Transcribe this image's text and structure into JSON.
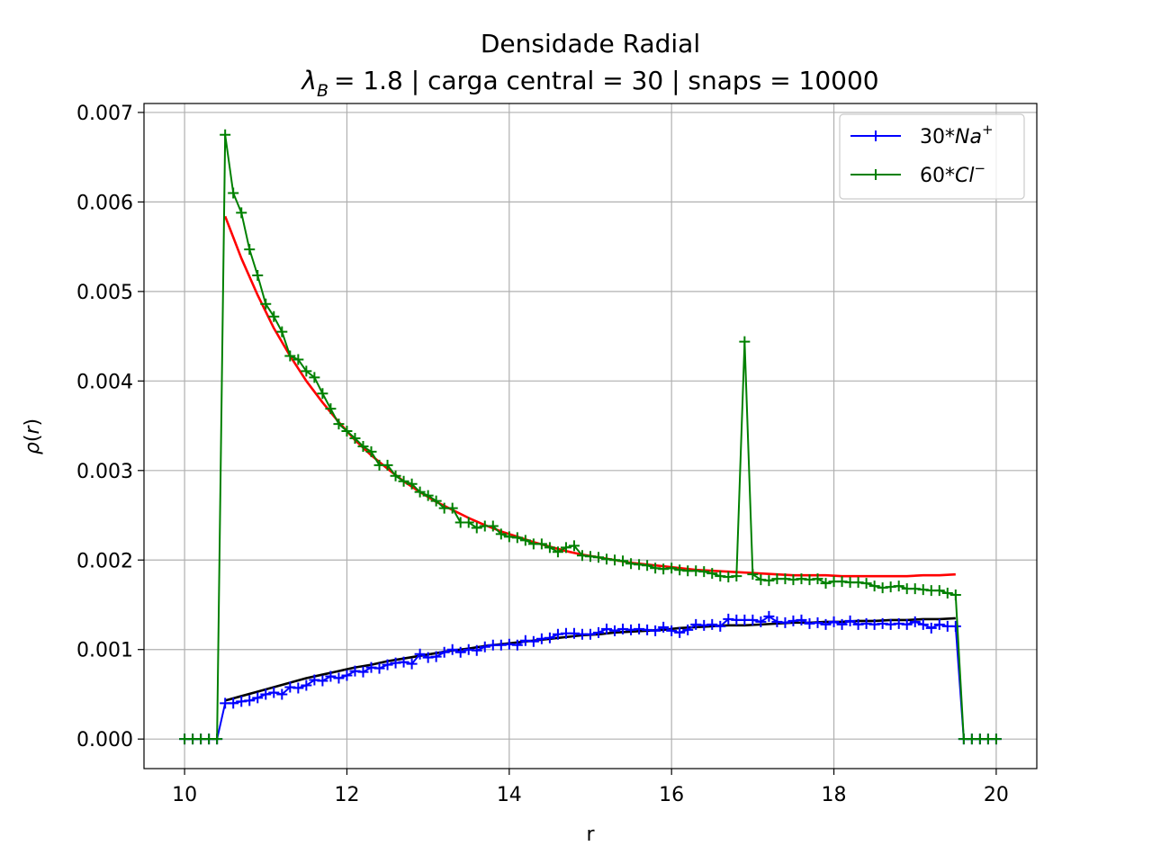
{
  "chart_data": {
    "type": "line",
    "title": "Densidade Radial",
    "subtitle_parts": {
      "lambda": "λ",
      "lambda_sub": "B",
      "rest": "= 1.8 | carga central = 30 | snaps = 10000"
    },
    "xlabel": "r",
    "ylabel_parts": {
      "rho": "ρ",
      "open": "(",
      "r": "r",
      "close": ")"
    },
    "xlim": [
      9.5,
      20.5
    ],
    "ylim": [
      -0.00033,
      0.0071
    ],
    "xticks": [
      10,
      12,
      14,
      16,
      18,
      20
    ],
    "xtick_labels": [
      "10",
      "12",
      "14",
      "16",
      "18",
      "20"
    ],
    "yticks": [
      0.0,
      0.001,
      0.002,
      0.003,
      0.004,
      0.005,
      0.006,
      0.007
    ],
    "ytick_labels": [
      "0.000",
      "0.001",
      "0.002",
      "0.003",
      "0.004",
      "0.005",
      "0.006",
      "0.007"
    ],
    "grid": true,
    "legend_position": "top-right",
    "series": [
      {
        "name": "30*Na+",
        "label_text": "30*",
        "label_italic": "Na",
        "label_sup": "+",
        "color": "#0000ff",
        "marker": "plus",
        "x": [
          10.0,
          10.1,
          10.2,
          10.3,
          10.4,
          10.5,
          10.6,
          10.7,
          10.8,
          10.9,
          11.0,
          11.1,
          11.2,
          11.3,
          11.4,
          11.5,
          11.6,
          11.7,
          11.8,
          11.9,
          12.0,
          12.1,
          12.2,
          12.3,
          12.4,
          12.5,
          12.6,
          12.7,
          12.8,
          12.9,
          13.0,
          13.1,
          13.2,
          13.3,
          13.4,
          13.5,
          13.6,
          13.7,
          13.8,
          13.9,
          14.0,
          14.1,
          14.2,
          14.3,
          14.4,
          14.5,
          14.6,
          14.7,
          14.8,
          14.9,
          15.0,
          15.1,
          15.2,
          15.3,
          15.4,
          15.5,
          15.6,
          15.7,
          15.8,
          15.9,
          16.0,
          16.1,
          16.2,
          16.3,
          16.4,
          16.5,
          16.6,
          16.7,
          16.8,
          16.9,
          17.0,
          17.1,
          17.2,
          17.3,
          17.4,
          17.5,
          17.6,
          17.7,
          17.8,
          17.9,
          18.0,
          18.1,
          18.2,
          18.3,
          18.4,
          18.5,
          18.6,
          18.7,
          18.8,
          18.9,
          19.0,
          19.1,
          19.2,
          19.3,
          19.4,
          19.5,
          19.6,
          19.7,
          19.8,
          19.9,
          20.0
        ],
        "values": [
          0.0,
          0.0,
          0.0,
          0.0,
          0.0,
          0.0004,
          0.0004,
          0.00042,
          0.00043,
          0.00046,
          0.0005,
          0.00052,
          0.0005,
          0.00058,
          0.00057,
          0.0006,
          0.00066,
          0.00065,
          0.0007,
          0.00068,
          0.00071,
          0.00076,
          0.00075,
          0.0008,
          0.00079,
          0.00083,
          0.00085,
          0.00086,
          0.00084,
          0.00095,
          0.00091,
          0.00092,
          0.00097,
          0.001,
          0.00097,
          0.001,
          0.00099,
          0.00103,
          0.00105,
          0.00105,
          0.00106,
          0.00105,
          0.0011,
          0.00109,
          0.00112,
          0.00113,
          0.00117,
          0.00118,
          0.00118,
          0.00117,
          0.00117,
          0.00119,
          0.00123,
          0.00121,
          0.00123,
          0.00122,
          0.00123,
          0.00122,
          0.00121,
          0.00125,
          0.00121,
          0.00119,
          0.00122,
          0.00128,
          0.00127,
          0.00128,
          0.00126,
          0.00134,
          0.00133,
          0.00133,
          0.00133,
          0.00131,
          0.00137,
          0.00131,
          0.0013,
          0.00132,
          0.00133,
          0.00129,
          0.0013,
          0.00128,
          0.00131,
          0.00128,
          0.00132,
          0.00128,
          0.00129,
          0.00128,
          0.00129,
          0.00128,
          0.00129,
          0.00128,
          0.00131,
          0.00128,
          0.00124,
          0.00128,
          0.00126,
          0.00126,
          0.0,
          0.0,
          0.0,
          0.0,
          0.0
        ]
      },
      {
        "name": "60*Cl-",
        "label_text": "60*",
        "label_italic": "Cl",
        "label_sup": "−",
        "color": "#008000",
        "marker": "plus",
        "x": [
          10.0,
          10.1,
          10.2,
          10.3,
          10.4,
          10.5,
          10.6,
          10.7,
          10.8,
          10.9,
          11.0,
          11.1,
          11.2,
          11.3,
          11.4,
          11.5,
          11.6,
          11.7,
          11.8,
          11.9,
          12.0,
          12.1,
          12.2,
          12.3,
          12.4,
          12.5,
          12.6,
          12.7,
          12.8,
          12.9,
          13.0,
          13.1,
          13.2,
          13.3,
          13.4,
          13.5,
          13.6,
          13.7,
          13.8,
          13.9,
          14.0,
          14.1,
          14.2,
          14.3,
          14.4,
          14.5,
          14.6,
          14.7,
          14.8,
          14.9,
          15.0,
          15.1,
          15.2,
          15.3,
          15.4,
          15.5,
          15.6,
          15.7,
          15.8,
          15.9,
          16.0,
          16.1,
          16.2,
          16.3,
          16.4,
          16.5,
          16.6,
          16.7,
          16.8,
          16.9,
          17.0,
          17.1,
          17.2,
          17.3,
          17.4,
          17.5,
          17.6,
          17.7,
          17.8,
          17.9,
          18.0,
          18.1,
          18.2,
          18.3,
          18.4,
          18.5,
          18.6,
          18.7,
          18.8,
          18.9,
          19.0,
          19.1,
          19.2,
          19.3,
          19.4,
          19.5,
          19.6,
          19.7,
          19.8,
          19.9,
          20.0
        ],
        "values": [
          0.0,
          0.0,
          0.0,
          0.0,
          0.0,
          0.00675,
          0.0061,
          0.00588,
          0.00547,
          0.00518,
          0.00486,
          0.00472,
          0.00455,
          0.00428,
          0.00424,
          0.00411,
          0.00404,
          0.00386,
          0.00369,
          0.00352,
          0.00344,
          0.00336,
          0.00327,
          0.00321,
          0.00306,
          0.00306,
          0.00294,
          0.00288,
          0.00285,
          0.00276,
          0.00272,
          0.00266,
          0.00258,
          0.00258,
          0.00242,
          0.00242,
          0.00236,
          0.00238,
          0.00238,
          0.00229,
          0.00226,
          0.00225,
          0.00222,
          0.00218,
          0.00218,
          0.00214,
          0.00209,
          0.00214,
          0.00216,
          0.00205,
          0.00204,
          0.00203,
          0.00201,
          0.002,
          0.00199,
          0.00196,
          0.00195,
          0.00194,
          0.00191,
          0.0019,
          0.00191,
          0.00189,
          0.00188,
          0.00188,
          0.00187,
          0.00185,
          0.00182,
          0.00181,
          0.00182,
          0.00444,
          0.00184,
          0.00178,
          0.00177,
          0.00179,
          0.00179,
          0.00178,
          0.00179,
          0.00178,
          0.00179,
          0.00174,
          0.00176,
          0.00176,
          0.00175,
          0.00175,
          0.00174,
          0.00171,
          0.00169,
          0.0017,
          0.00171,
          0.00168,
          0.00168,
          0.00167,
          0.00166,
          0.00166,
          0.00163,
          0.00161,
          0.0,
          0.0,
          0.0,
          0.0,
          0.0
        ]
      },
      {
        "name": "",
        "color": "#ff0000",
        "marker": "none",
        "x": [
          10.5,
          10.7,
          10.9,
          11.1,
          11.3,
          11.5,
          11.7,
          11.9,
          12.1,
          12.3,
          12.5,
          12.7,
          12.9,
          13.1,
          13.3,
          13.5,
          13.7,
          13.9,
          14.1,
          14.3,
          14.5,
          14.7,
          14.9,
          15.1,
          15.3,
          15.5,
          15.7,
          15.9,
          16.1,
          16.3,
          16.5,
          16.7,
          16.9,
          17.1,
          17.3,
          17.5,
          17.7,
          17.9,
          18.1,
          18.3,
          18.5,
          18.7,
          18.9,
          19.1,
          19.3,
          19.5
        ],
        "values": [
          0.00584,
          0.00537,
          0.00496,
          0.00459,
          0.00428,
          0.004,
          0.00376,
          0.00354,
          0.00334,
          0.00317,
          0.00302,
          0.00288,
          0.00276,
          0.00265,
          0.00256,
          0.00247,
          0.00239,
          0.00232,
          0.00226,
          0.0022,
          0.00215,
          0.0021,
          0.00206,
          0.00203,
          0.002,
          0.00197,
          0.00195,
          0.00193,
          0.00191,
          0.00189,
          0.00188,
          0.00187,
          0.00186,
          0.00185,
          0.00184,
          0.00183,
          0.00183,
          0.00183,
          0.00182,
          0.00182,
          0.00182,
          0.00182,
          0.00182,
          0.00183,
          0.00183,
          0.00184
        ]
      },
      {
        "name": "",
        "color": "#000000",
        "marker": "none",
        "x": [
          10.5,
          10.7,
          10.9,
          11.1,
          11.3,
          11.5,
          11.7,
          11.9,
          12.1,
          12.3,
          12.5,
          12.7,
          12.9,
          13.1,
          13.3,
          13.5,
          13.7,
          13.9,
          14.1,
          14.3,
          14.5,
          14.7,
          14.9,
          15.1,
          15.3,
          15.5,
          15.7,
          15.9,
          16.1,
          16.3,
          16.5,
          16.7,
          16.9,
          17.1,
          17.3,
          17.5,
          17.7,
          17.9,
          18.1,
          18.3,
          18.5,
          18.7,
          18.9,
          19.1,
          19.3,
          19.5
        ],
        "values": [
          0.00043,
          0.00048,
          0.00053,
          0.00058,
          0.00063,
          0.00068,
          0.00072,
          0.00076,
          0.0008,
          0.00083,
          0.00087,
          0.0009,
          0.00093,
          0.00096,
          0.00099,
          0.00101,
          0.00104,
          0.00106,
          0.00108,
          0.0011,
          0.00112,
          0.00114,
          0.00116,
          0.00117,
          0.00119,
          0.0012,
          0.00121,
          0.00122,
          0.00124,
          0.00125,
          0.00126,
          0.00127,
          0.00127,
          0.00128,
          0.00129,
          0.0013,
          0.0013,
          0.00131,
          0.00131,
          0.00132,
          0.00132,
          0.00133,
          0.00133,
          0.00134,
          0.00134,
          0.00135
        ]
      }
    ]
  }
}
